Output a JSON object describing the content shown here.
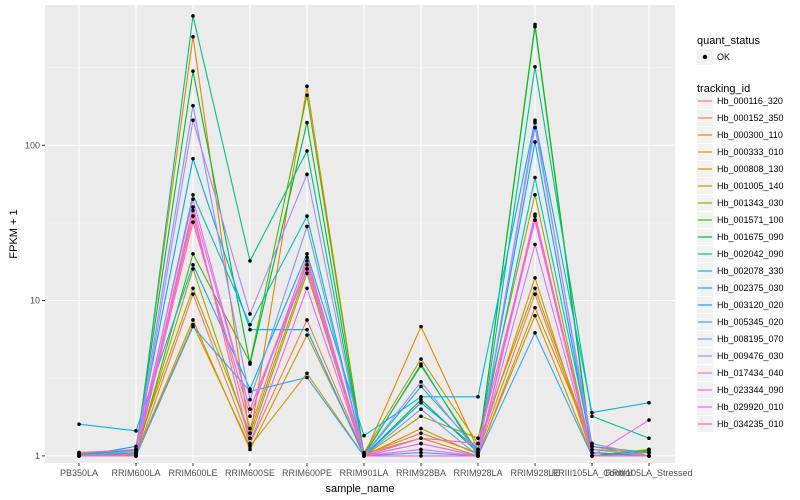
{
  "chart_data": {
    "type": "line",
    "ylog": true,
    "xlabel": "sample_name",
    "ylabel": "FPKM + 1",
    "ylim": [
      0.9,
      800
    ],
    "y_ticks": [
      {
        "value": 1,
        "label": "1"
      },
      {
        "value": 10,
        "label": "10"
      },
      {
        "value": 100,
        "label": "100"
      }
    ],
    "categories": [
      "PB350LA",
      "RRIM600LA",
      "RRIM600LE",
      "RRIM600SE",
      "RRIM600PE",
      "RRIM901LA",
      "RRIM928BA",
      "RRIM928LA",
      "RRIM928LE",
      "RRIII105LA_Control",
      "RRIII105LA_Stressed"
    ],
    "grid": true,
    "legend_position": "right",
    "legend_quant": {
      "title": "quant_status",
      "items": [
        "OK"
      ]
    },
    "legend_tracking": {
      "title": "tracking_id"
    },
    "series": [
      {
        "name": "Hb_000116_320",
        "color": "#F8766D",
        "values": [
          1.0,
          1.05,
          35,
          1.5,
          18,
          1.0,
          1.2,
          1.0,
          35,
          1.05,
          1.0
        ]
      },
      {
        "name": "Hb_000152_350",
        "color": "#EF7F48",
        "values": [
          1.02,
          1.0,
          11,
          1.2,
          7.5,
          1.02,
          1.4,
          1.05,
          11,
          1.1,
          1.05
        ]
      },
      {
        "name": "Hb_000300_110",
        "color": "#E58700",
        "values": [
          1.0,
          1.08,
          500,
          1.3,
          240,
          1.0,
          6.8,
          1.1,
          14,
          1.0,
          1.1
        ]
      },
      {
        "name": "Hb_000333_010",
        "color": "#D89000",
        "values": [
          1.05,
          1.02,
          7.5,
          1.1,
          6.0,
          1.03,
          1.3,
          1.0,
          9,
          1.2,
          1.0
        ]
      },
      {
        "name": "Hb_000808_130",
        "color": "#C99800",
        "values": [
          1.0,
          1.0,
          7.0,
          1.15,
          3.4,
          1.0,
          1.5,
          1.02,
          8,
          1.0,
          1.05
        ]
      },
      {
        "name": "Hb_001005_140",
        "color": "#B79F00",
        "values": [
          1.03,
          1.1,
          12,
          1.4,
          16,
          1.05,
          4.2,
          1.2,
          12,
          1.15,
          1.0
        ]
      },
      {
        "name": "Hb_001343_030",
        "color": "#A3A500",
        "values": [
          1.0,
          1.03,
          16,
          1.3,
          15,
          1.0,
          1.8,
          1.3,
          48,
          1.0,
          1.1
        ]
      },
      {
        "name": "Hb_001571_100",
        "color": "#53B400",
        "values": [
          1.05,
          1.0,
          20,
          4.0,
          210,
          1.02,
          3.8,
          1.05,
          600,
          1.05,
          1.0
        ]
      },
      {
        "name": "Hb_001675_090",
        "color": "#00BA38",
        "values": [
          1.0,
          1.1,
          300,
          3.9,
          140,
          1.0,
          2.3,
          1.05,
          580,
          1.0,
          1.08
        ]
      },
      {
        "name": "Hb_002042_090",
        "color": "#00C08B",
        "values": [
          1.02,
          1.0,
          680,
          18,
          92,
          1.0,
          3.9,
          1.0,
          320,
          1.8,
          1.3
        ]
      },
      {
        "name": "Hb_002078_330",
        "color": "#00BFC4",
        "values": [
          1.0,
          1.05,
          48,
          7,
          35,
          1.0,
          2.8,
          1.1,
          62,
          1.15,
          1.05
        ]
      },
      {
        "name": "Hb_002375_030",
        "color": "#00B4F0",
        "values": [
          1.6,
          1.45,
          17,
          2.7,
          20,
          1.35,
          2.4,
          2.4,
          145,
          1.9,
          2.2
        ]
      },
      {
        "name": "Hb_003120_020",
        "color": "#00A9FF",
        "values": [
          1.0,
          1.15,
          82,
          6.5,
          6.5,
          1.0,
          2.2,
          1.1,
          105,
          1.05,
          1.0
        ]
      },
      {
        "name": "Hb_005345_020",
        "color": "#35A2FF",
        "values": [
          1.02,
          1.0,
          6.8,
          2.6,
          3.2,
          1.0,
          1.05,
          1.0,
          6.2,
          1.0,
          1.0
        ]
      },
      {
        "name": "Hb_008195_070",
        "color": "#7F96FF",
        "values": [
          1.0,
          1.08,
          180,
          2.3,
          30,
          1.0,
          2.0,
          1.0,
          140,
          1.1,
          1.0
        ]
      },
      {
        "name": "Hb_009476_030",
        "color": "#B285FF",
        "values": [
          1.0,
          1.0,
          145,
          8.2,
          65,
          1.0,
          3.0,
          1.05,
          130,
          1.2,
          1.0
        ]
      },
      {
        "name": "Hb_017434_040",
        "color": "#D575FE",
        "values": [
          1.0,
          1.0,
          40,
          2.0,
          17,
          1.0,
          1.2,
          1.0,
          23,
          1.0,
          1.0
        ]
      },
      {
        "name": "Hb_023344_090",
        "color": "#E96AF0",
        "values": [
          1.05,
          1.1,
          45,
          2.0,
          16,
          1.0,
          1.1,
          1.0,
          33,
          1.0,
          1.7
        ]
      },
      {
        "name": "Hb_029920_010",
        "color": "#F763E0",
        "values": [
          1.0,
          1.02,
          38,
          1.2,
          12,
          1.0,
          1.0,
          1.0,
          36,
          1.0,
          1.0
        ]
      },
      {
        "name": "Hb_034235_010",
        "color": "#FF62BC",
        "values": [
          1.0,
          1.0,
          32,
          1.8,
          19,
          1.0,
          1.3,
          1.2,
          33,
          1.0,
          1.0
        ]
      }
    ]
  }
}
